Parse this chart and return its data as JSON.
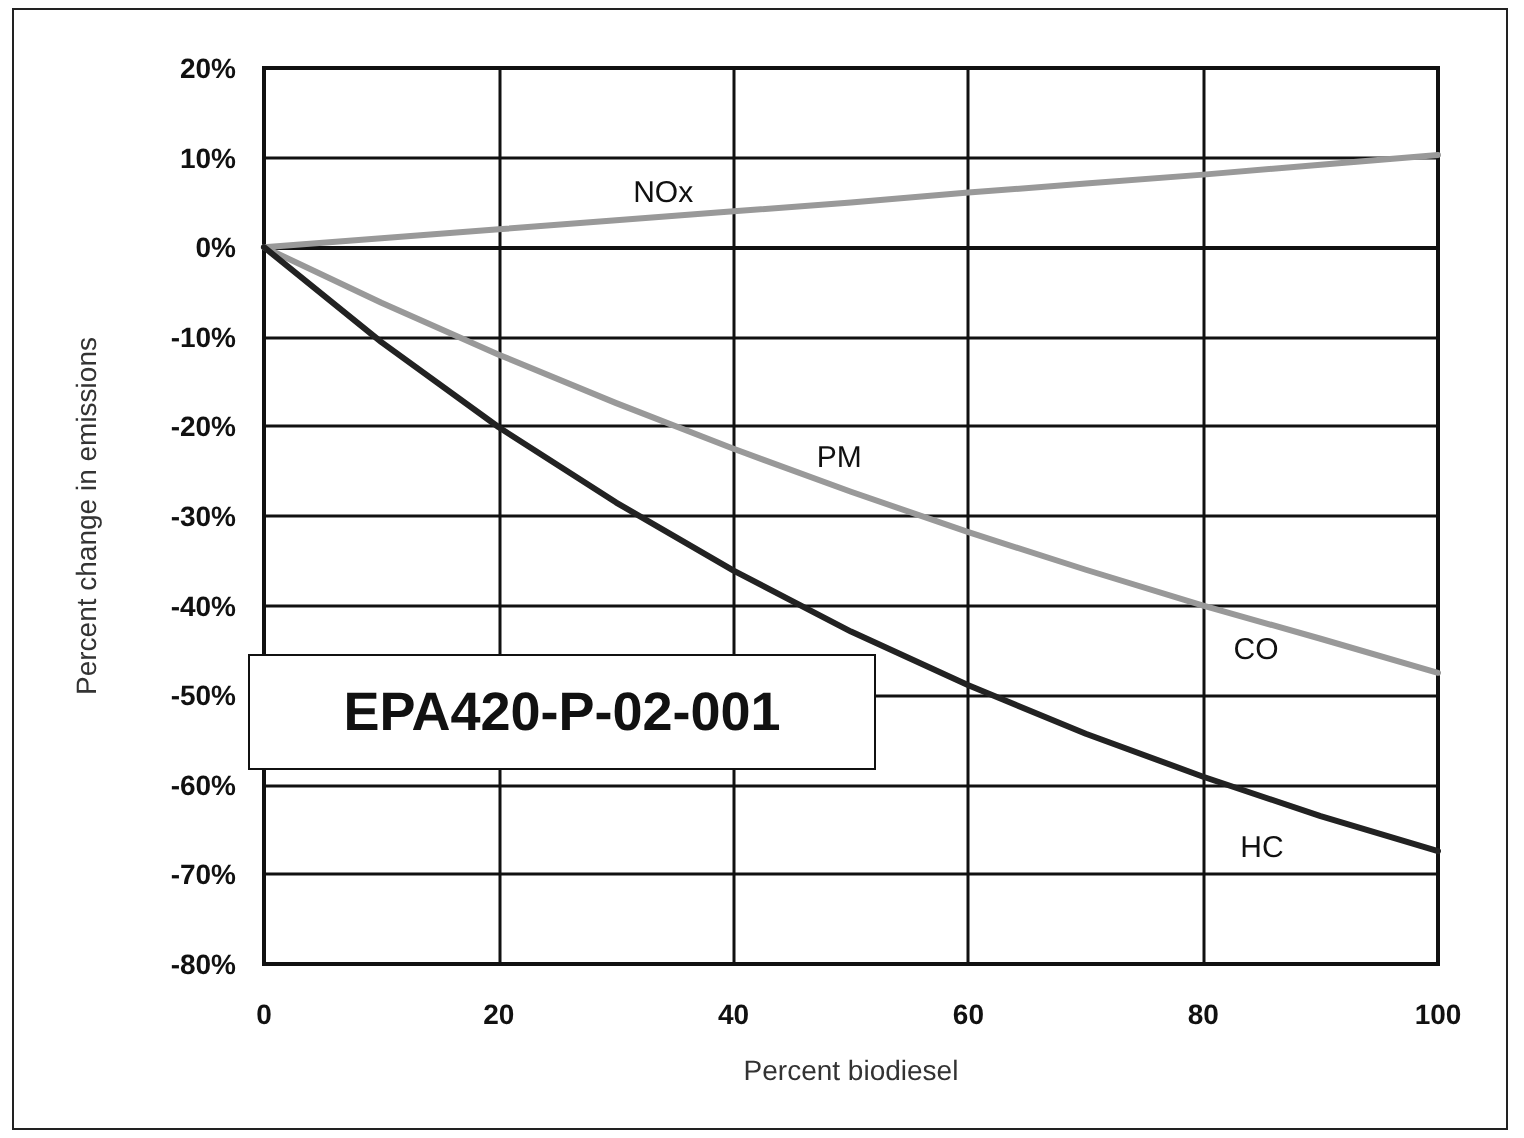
{
  "chart_data": {
    "type": "line",
    "xlabel": "Percent biodiesel",
    "ylabel": "Percent change in emissions",
    "x": [
      0,
      10,
      20,
      30,
      40,
      50,
      60,
      70,
      80,
      90,
      100
    ],
    "series": [
      {
        "color": "#999999",
        "values": [
          0,
          1.0,
          2.0,
          3.0,
          4.0,
          5.0,
          6.1,
          7.1,
          8.1,
          9.2,
          10.3
        ]
      },
      {
        "color": "#999999",
        "values": [
          0,
          -6.2,
          -12.0,
          -17.4,
          -22.5,
          -27.3,
          -31.8,
          -36.0,
          -40.0,
          -43.7,
          -47.5
        ]
      },
      {
        "color": "#222222",
        "values": [
          0,
          -10.6,
          -20.1,
          -28.5,
          -36.1,
          -42.9,
          -48.9,
          -54.3,
          -59.1,
          -63.5,
          -67.4
        ]
      }
    ],
    "xlim": [
      0,
      100
    ],
    "xticks": [
      0,
      20,
      40,
      60,
      80,
      100
    ],
    "ylim": [
      -80,
      20
    ],
    "yticks": [
      {
        "value": -80,
        "label": "-80%"
      },
      {
        "value": -70,
        "label": "-70%"
      },
      {
        "value": -60,
        "label": "-60%"
      },
      {
        "value": -50,
        "label": "-50%"
      },
      {
        "value": -40,
        "label": "-40%"
      },
      {
        "value": -30,
        "label": "-30%"
      },
      {
        "value": -20,
        "label": "-20%"
      },
      {
        "value": -10,
        "label": "-10%"
      },
      {
        "value": 0,
        "label": "0%"
      },
      {
        "value": 10,
        "label": "10%"
      },
      {
        "value": 20,
        "label": "20%"
      }
    ],
    "annotations": [
      {
        "text": "NOx",
        "x": 34,
        "y": 6
      },
      {
        "text": "PM",
        "x": 49,
        "y": -23.5
      },
      {
        "text": "CO",
        "x": 84.5,
        "y": -45
      },
      {
        "text": "HC",
        "x": 85,
        "y": -67
      },
      "EPA420-P-02-001"
    ],
    "grid": true,
    "marker": "none",
    "line_style": "solid"
  }
}
